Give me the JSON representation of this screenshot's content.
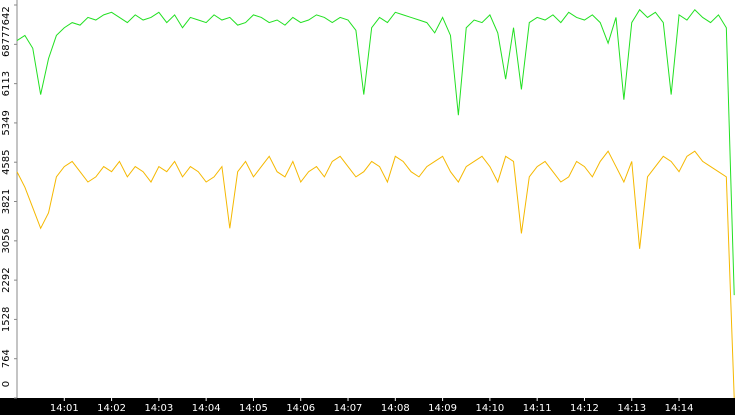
{
  "chart_data": {
    "type": "line",
    "xlim": [
      0,
      911
    ],
    "xticks": [
      {
        "value": 60,
        "label": "14:01"
      },
      {
        "value": 120,
        "label": "14:02"
      },
      {
        "value": 180,
        "label": "14:03"
      },
      {
        "value": 240,
        "label": "14:04"
      },
      {
        "value": 300,
        "label": "14:05"
      },
      {
        "value": 360,
        "label": "14:06"
      },
      {
        "value": 420,
        "label": "14:07"
      },
      {
        "value": 480,
        "label": "14:08"
      },
      {
        "value": 540,
        "label": "14:09"
      },
      {
        "value": 600,
        "label": "14:10"
      },
      {
        "value": 660,
        "label": "14:11"
      },
      {
        "value": 720,
        "label": "14:12"
      },
      {
        "value": 780,
        "label": "14:13"
      },
      {
        "value": 840,
        "label": "14:14"
      }
    ],
    "ylim": [
      0,
      7642
    ],
    "yticks": [
      0,
      764,
      1528,
      2292,
      3056,
      3821,
      4585,
      5349,
      6113,
      6877,
      7642
    ],
    "x": [
      0,
      10,
      20,
      30,
      40,
      50,
      60,
      70,
      80,
      90,
      100,
      110,
      120,
      130,
      140,
      150,
      160,
      170,
      180,
      190,
      200,
      210,
      220,
      230,
      240,
      250,
      260,
      270,
      280,
      290,
      300,
      310,
      320,
      330,
      340,
      350,
      360,
      370,
      380,
      390,
      400,
      410,
      420,
      430,
      440,
      450,
      460,
      470,
      480,
      490,
      500,
      510,
      520,
      530,
      540,
      550,
      560,
      570,
      580,
      590,
      600,
      610,
      620,
      630,
      640,
      650,
      660,
      670,
      680,
      690,
      700,
      710,
      720,
      730,
      740,
      750,
      760,
      770,
      780,
      790,
      800,
      810,
      820,
      830,
      840,
      850,
      860,
      870,
      880,
      890,
      900,
      910
    ],
    "series": [
      {
        "color": "#22e022",
        "values": [
          6950,
          7050,
          6800,
          5900,
          6600,
          7050,
          7200,
          7300,
          7250,
          7400,
          7350,
          7450,
          7500,
          7400,
          7300,
          7450,
          7350,
          7400,
          7500,
          7300,
          7450,
          7200,
          7400,
          7350,
          7300,
          7450,
          7350,
          7400,
          7250,
          7300,
          7450,
          7400,
          7300,
          7350,
          7250,
          7400,
          7300,
          7350,
          7450,
          7400,
          7300,
          7400,
          7350,
          7150,
          5900,
          7200,
          7400,
          7300,
          7500,
          7450,
          7400,
          7350,
          7300,
          7100,
          7400,
          7050,
          5500,
          7200,
          7350,
          7300,
          7450,
          7100,
          6200,
          7200,
          6000,
          7300,
          7400,
          7350,
          7450,
          7300,
          7500,
          7400,
          7350,
          7450,
          7300,
          6900,
          7400,
          5800,
          7300,
          7550,
          7400,
          7500,
          7300,
          5900,
          7450,
          7350,
          7550,
          7400,
          7300,
          7450,
          7200,
          2000
        ]
      },
      {
        "color": "#f5b800",
        "values": [
          4400,
          4100,
          3700,
          3300,
          3600,
          4300,
          4500,
          4600,
          4400,
          4200,
          4300,
          4500,
          4400,
          4600,
          4300,
          4500,
          4400,
          4200,
          4500,
          4400,
          4600,
          4300,
          4500,
          4400,
          4200,
          4300,
          4500,
          3300,
          4400,
          4600,
          4300,
          4500,
          4700,
          4400,
          4300,
          4600,
          4200,
          4400,
          4500,
          4300,
          4600,
          4700,
          4500,
          4300,
          4400,
          4600,
          4500,
          4200,
          4700,
          4600,
          4400,
          4300,
          4500,
          4600,
          4700,
          4400,
          4200,
          4500,
          4600,
          4700,
          4500,
          4200,
          4700,
          4600,
          3200,
          4300,
          4500,
          4600,
          4400,
          4200,
          4300,
          4600,
          4500,
          4300,
          4600,
          4800,
          4500,
          4200,
          4600,
          2900,
          4300,
          4500,
          4700,
          4600,
          4400,
          4700,
          4800,
          4600,
          4500,
          4400,
          4300,
          0
        ]
      }
    ]
  }
}
